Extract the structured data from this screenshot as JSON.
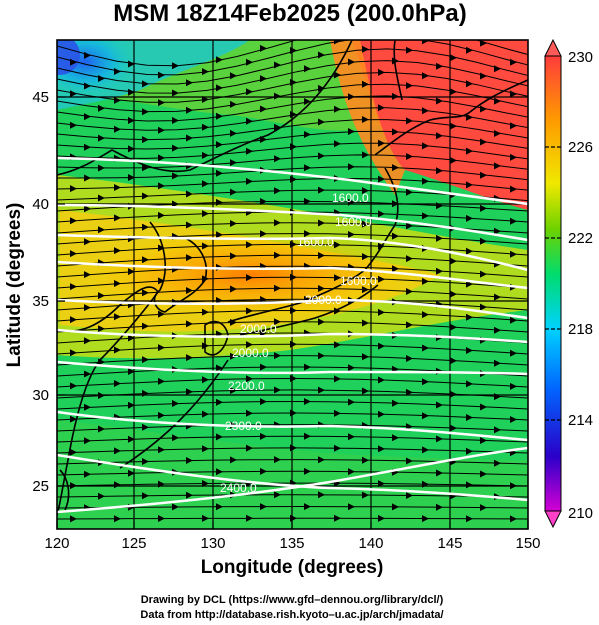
{
  "title": "MSM 18Z14Feb2025 (200.0hPa)",
  "x_axis": {
    "label": "Longitude (degrees)",
    "ticks": [
      "120",
      "125",
      "130",
      "135",
      "140",
      "145",
      "150"
    ]
  },
  "y_axis": {
    "label": "Latitude  (degrees)",
    "ticks": [
      "25",
      "30",
      "35",
      "40",
      "45"
    ]
  },
  "colorbar": {
    "ticks": [
      "210",
      "214",
      "218",
      "222",
      "226",
      "230"
    ],
    "colors": [
      "#d400d4",
      "#2b00c8",
      "#0066ff",
      "#00d2ff",
      "#00dc6e",
      "#6ed200",
      "#f0e800",
      "#ff9a00",
      "#ff3c3c"
    ]
  },
  "contour_labels": [
    "1600.0",
    "1600.0",
    "1600.0",
    "1600.0",
    "2000.0",
    "2000.0",
    "2000.0",
    "2200.0",
    "2300.0",
    "2400.0"
  ],
  "credits": [
    "Drawing by DCL (https://www.gfd–dennou.org/library/dcl/)",
    "Data from http://database.rish.kyoto–u.ac.jp/arch/jmadata/"
  ],
  "map": {
    "lon_range": [
      120,
      150
    ],
    "lat_range": [
      22.8,
      48
    ],
    "field": "temperature",
    "flow": "westerly streamlines",
    "colors": {
      "warm": "#ff4040",
      "cool": "#2a7ef0",
      "contour": "#ffffff",
      "coast": "#000000"
    }
  }
}
